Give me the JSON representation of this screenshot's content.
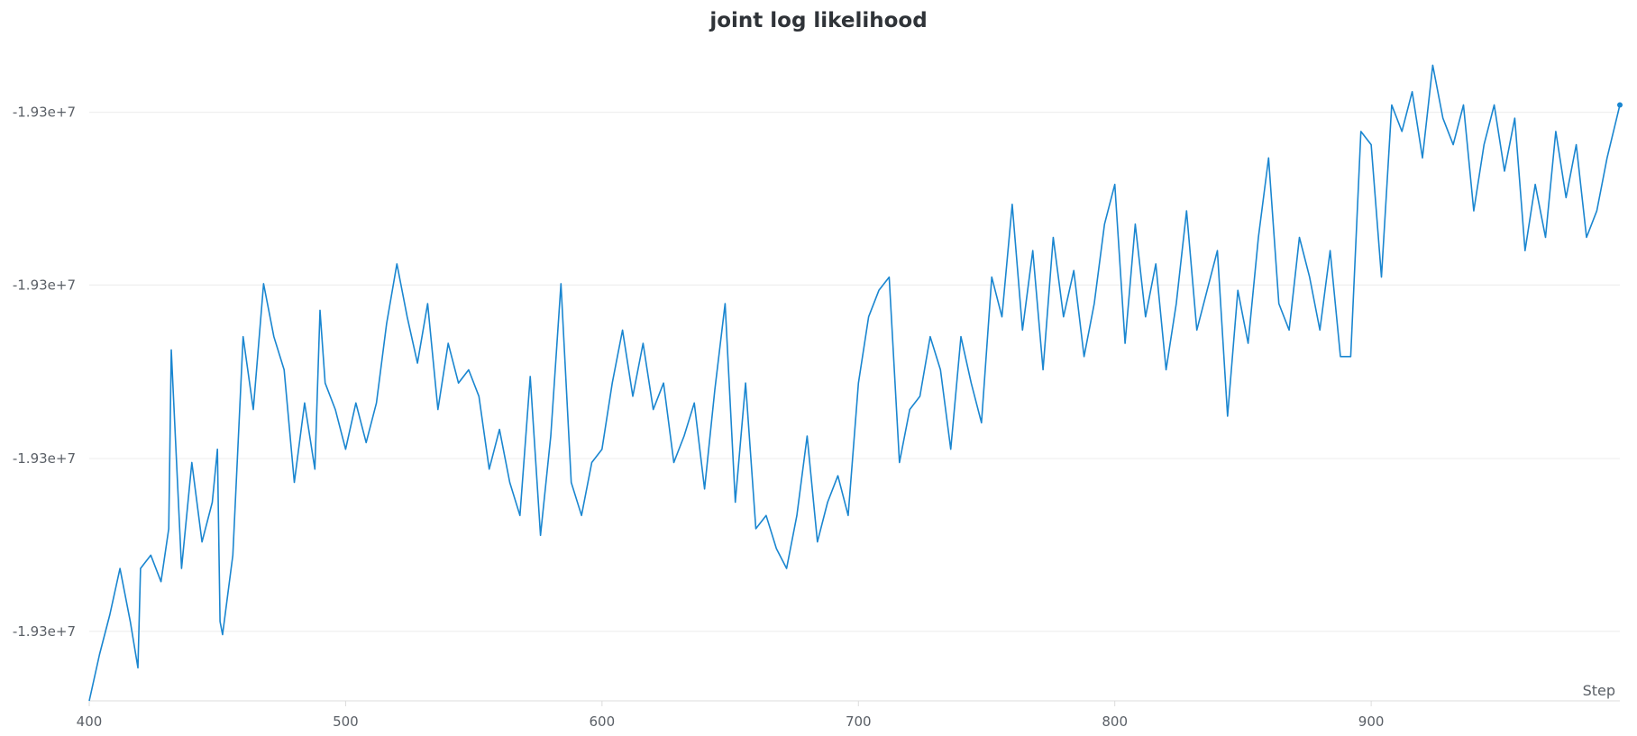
{
  "colors": {
    "series": "#1a86d0"
  },
  "chart_data": {
    "type": "line",
    "title": "joint log likelihood",
    "xlabel": "Step",
    "ylabel": "",
    "xlim": [
      400,
      997
    ],
    "ylim": [
      0,
      1
    ],
    "grid": "horizontal",
    "legend": "none",
    "x_ticks": [
      {
        "value": 400,
        "label": "400"
      },
      {
        "value": 500,
        "label": "500"
      },
      {
        "value": 600,
        "label": "600"
      },
      {
        "value": 700,
        "label": "700"
      },
      {
        "value": 800,
        "label": "800"
      },
      {
        "value": 900,
        "label": "900"
      }
    ],
    "y_ticks": [
      {
        "value": 0.105,
        "label": "-1.93e+7"
      },
      {
        "value": 0.366,
        "label": "-1.93e+7"
      },
      {
        "value": 0.628,
        "label": "-1.93e+7"
      },
      {
        "value": 0.889,
        "label": "-1.93e+7"
      }
    ],
    "series": [
      {
        "x": [
          400,
          404,
          408,
          412,
          416,
          419,
          420,
          424,
          428,
          431,
          432,
          436,
          440,
          444,
          448,
          450,
          451,
          452,
          456,
          460,
          464,
          468,
          472,
          476,
          480,
          484,
          488,
          490,
          492,
          496,
          500,
          504,
          508,
          512,
          516,
          520,
          524,
          528,
          532,
          536,
          540,
          544,
          548,
          552,
          556,
          560,
          564,
          568,
          572,
          576,
          580,
          584,
          588,
          592,
          596,
          600,
          604,
          608,
          612,
          616,
          620,
          624,
          628,
          632,
          636,
          640,
          644,
          648,
          652,
          656,
          660,
          664,
          668,
          672,
          676,
          680,
          684,
          688,
          692,
          696,
          700,
          704,
          708,
          712,
          716,
          720,
          724,
          728,
          732,
          736,
          740,
          744,
          748,
          752,
          756,
          760,
          764,
          768,
          772,
          776,
          780,
          784,
          788,
          792,
          796,
          800,
          804,
          808,
          812,
          816,
          820,
          824,
          828,
          832,
          836,
          840,
          844,
          848,
          852,
          856,
          860,
          864,
          868,
          872,
          876,
          880,
          884,
          888,
          892,
          896,
          900,
          904,
          908,
          912,
          916,
          920,
          924,
          928,
          932,
          936,
          940,
          944,
          948,
          952,
          956,
          960,
          964,
          968,
          972,
          976,
          980,
          984,
          988,
          992,
          997
        ],
        "y": [
          0.0,
          0.07,
          0.13,
          0.2,
          0.12,
          0.05,
          0.2,
          0.22,
          0.18,
          0.26,
          0.53,
          0.2,
          0.36,
          0.24,
          0.3,
          0.38,
          0.12,
          0.1,
          0.22,
          0.55,
          0.44,
          0.63,
          0.55,
          0.5,
          0.33,
          0.45,
          0.35,
          0.59,
          0.48,
          0.44,
          0.38,
          0.45,
          0.39,
          0.45,
          0.57,
          0.66,
          0.58,
          0.51,
          0.6,
          0.44,
          0.54,
          0.48,
          0.5,
          0.46,
          0.35,
          0.41,
          0.33,
          0.28,
          0.49,
          0.25,
          0.4,
          0.63,
          0.33,
          0.28,
          0.36,
          0.38,
          0.48,
          0.56,
          0.46,
          0.54,
          0.44,
          0.48,
          0.36,
          0.4,
          0.45,
          0.32,
          0.47,
          0.6,
          0.3,
          0.48,
          0.26,
          0.28,
          0.23,
          0.2,
          0.28,
          0.4,
          0.24,
          0.3,
          0.34,
          0.28,
          0.48,
          0.58,
          0.62,
          0.64,
          0.36,
          0.44,
          0.46,
          0.55,
          0.5,
          0.38,
          0.55,
          0.48,
          0.42,
          0.64,
          0.58,
          0.75,
          0.56,
          0.68,
          0.5,
          0.7,
          0.58,
          0.65,
          0.52,
          0.6,
          0.72,
          0.78,
          0.54,
          0.72,
          0.58,
          0.66,
          0.5,
          0.6,
          0.74,
          0.56,
          0.62,
          0.68,
          0.43,
          0.62,
          0.54,
          0.7,
          0.82,
          0.6,
          0.56,
          0.7,
          0.64,
          0.56,
          0.68,
          0.52,
          0.52,
          0.86,
          0.84,
          0.64,
          0.9,
          0.86,
          0.92,
          0.82,
          0.96,
          0.88,
          0.84,
          0.9,
          0.74,
          0.84,
          0.9,
          0.8,
          0.88,
          0.68,
          0.78,
          0.7,
          0.86,
          0.76,
          0.84,
          0.7,
          0.74,
          0.82,
          0.9
        ]
      }
    ]
  }
}
